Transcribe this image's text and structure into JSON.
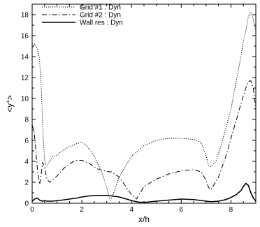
{
  "chart_data": {
    "type": "line",
    "title": "",
    "xlabel": "x/h",
    "ylabel": "<y+>",
    "ylabel_base": "<y",
    "ylabel_sup": "+",
    "ylabel_end": ">",
    "xlim": [
      0,
      9
    ],
    "ylim": [
      0,
      19
    ],
    "xticks": [
      0,
      2,
      4,
      6,
      8
    ],
    "xtick_labels": [
      "0",
      "2",
      "4",
      "6",
      "8"
    ],
    "yticks": [
      0,
      2,
      4,
      6,
      8,
      10,
      12,
      14,
      16,
      18
    ],
    "ytick_labels": [
      "0",
      "2",
      "4",
      "6",
      "8",
      "10",
      "12",
      "14",
      "16",
      "18"
    ],
    "grid": false,
    "legend_position": "top-left",
    "series": [
      {
        "name": "Grid #1 : Dyn",
        "style": "dotted",
        "x": [
          0,
          0.1,
          0.2,
          0.28,
          0.35,
          0.4,
          0.45,
          0.5,
          0.55,
          0.6,
          0.7,
          0.8,
          1.0,
          1.2,
          1.5,
          1.8,
          2.0,
          2.2,
          2.5,
          2.8,
          3.0,
          3.1,
          3.15,
          3.25,
          3.5,
          4.0,
          4.5,
          5.0,
          5.5,
          6.0,
          6.5,
          6.8,
          7.0,
          7.1,
          7.2,
          7.4,
          7.6,
          7.8,
          8.0,
          8.2,
          8.4,
          8.5,
          8.6,
          8.7,
          8.8,
          8.9,
          9.0
        ],
        "y": [
          14.8,
          15.2,
          14.8,
          14.0,
          12.0,
          9.0,
          6.0,
          4.2,
          3.7,
          3.6,
          4.0,
          4.4,
          4.6,
          5.0,
          5.4,
          5.7,
          5.8,
          5.5,
          4.5,
          3.0,
          1.5,
          0.6,
          0.3,
          0.8,
          2.5,
          4.5,
          5.5,
          6.0,
          6.2,
          6.2,
          6.1,
          5.8,
          4.5,
          3.6,
          3.5,
          4.0,
          5.5,
          7.2,
          9.0,
          11.5,
          14.0,
          15.5,
          16.5,
          17.8,
          18.2,
          17.5,
          16.5
        ]
      },
      {
        "name": "Grid #2 : Dyn",
        "style": "dash-dot",
        "x": [
          0,
          0.08,
          0.15,
          0.22,
          0.3,
          0.35,
          0.42,
          0.5,
          0.55,
          0.6,
          0.7,
          0.8,
          1.0,
          1.3,
          1.6,
          1.8,
          2.0,
          2.3,
          2.6,
          2.9,
          3.1,
          3.2,
          3.5,
          3.8,
          4.0,
          4.2,
          4.5,
          5.0,
          5.5,
          6.0,
          6.5,
          6.8,
          7.0,
          7.1,
          7.2,
          7.5,
          7.8,
          8.0,
          8.2,
          8.4,
          8.6,
          8.7,
          8.8,
          8.9,
          9.0
        ],
        "y": [
          7.5,
          6.8,
          5.0,
          3.0,
          1.8,
          2.5,
          3.9,
          3.5,
          2.8,
          2.3,
          2.0,
          2.2,
          2.6,
          3.4,
          3.9,
          4.1,
          4.1,
          3.8,
          3.3,
          3.1,
          3.0,
          3.0,
          2.5,
          1.5,
          0.8,
          0.4,
          1.6,
          2.3,
          2.8,
          3.1,
          3.2,
          3.0,
          2.2,
          1.5,
          1.3,
          2.5,
          4.5,
          6.2,
          7.8,
          9.5,
          11.0,
          11.6,
          11.7,
          11.0,
          9.0
        ]
      },
      {
        "name": "Wall res : Dyn",
        "style": "solid",
        "x": [
          0,
          0.1,
          0.2,
          0.3,
          0.4,
          0.5,
          0.6,
          0.8,
          1.0,
          1.2,
          1.5,
          1.8,
          2.0,
          2.3,
          2.6,
          3.0,
          3.2,
          3.5,
          3.8,
          4.0,
          4.3,
          4.6,
          5.0,
          5.5,
          6.0,
          6.5,
          7.0,
          7.2,
          7.5,
          7.8,
          8.0,
          8.2,
          8.4,
          8.5,
          8.6,
          8.7,
          8.8,
          8.9,
          9.0
        ],
        "y": [
          0.2,
          0.4,
          0.5,
          0.3,
          0.2,
          0.25,
          0.2,
          0.2,
          0.25,
          0.3,
          0.4,
          0.5,
          0.6,
          0.7,
          0.75,
          0.75,
          0.7,
          0.6,
          0.4,
          0.25,
          0.1,
          0.1,
          0.2,
          0.3,
          0.4,
          0.35,
          0.2,
          0.15,
          0.2,
          0.35,
          0.55,
          0.8,
          1.2,
          1.6,
          1.9,
          1.7,
          1.0,
          0.5,
          0.2
        ]
      }
    ]
  }
}
